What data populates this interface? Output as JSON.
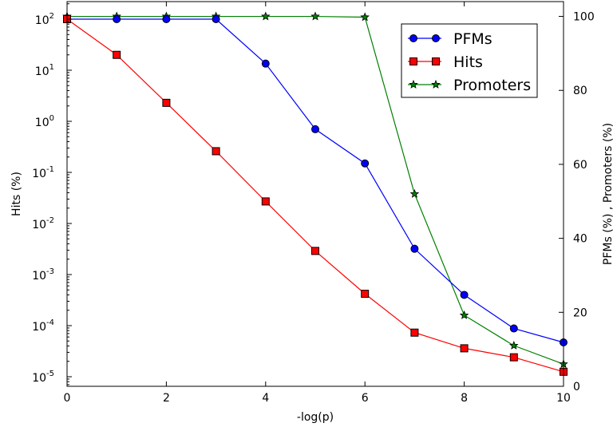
{
  "chart_data": {
    "type": "line",
    "xlabel": "-log(p)",
    "ylabel_left": "Hits (%)",
    "ylabel_right": "PFMs (%) , Promoters (%)",
    "x_ticks": [
      "0",
      "2",
      "4",
      "6",
      "8",
      "10"
    ],
    "xlim": [
      0,
      10
    ],
    "y_left_scale": "log",
    "y_left_ticks": [
      {
        "base": "10",
        "exp": "2"
      },
      {
        "base": "10",
        "exp": "1"
      },
      {
        "base": "10",
        "exp": "0"
      },
      {
        "base": "10",
        "exp": "-1"
      },
      {
        "base": "10",
        "exp": "-2"
      },
      {
        "base": "10",
        "exp": "-3"
      },
      {
        "base": "10",
        "exp": "-4"
      },
      {
        "base": "10",
        "exp": "-5"
      }
    ],
    "y_right_ticks": [
      "0",
      "20",
      "40",
      "60",
      "80",
      "100"
    ],
    "y_right_lim": [
      0,
      104
    ],
    "grid": false,
    "legend_position": "top-right",
    "series": [
      {
        "name": "PFMs",
        "axis": "left",
        "color": "#0000ff",
        "marker": "circle",
        "x": [
          0,
          1,
          2,
          3,
          4,
          5,
          6,
          7,
          8,
          9,
          10
        ],
        "y": [
          100,
          100,
          100,
          100,
          13.5,
          0.7,
          0.15,
          0.0032,
          0.0004,
          8.8e-05,
          4.7e-05
        ]
      },
      {
        "name": "Hits",
        "axis": "left",
        "color": "#ff0000",
        "marker": "square",
        "x": [
          0,
          1,
          2,
          3,
          4,
          5,
          6,
          7,
          8,
          9,
          10
        ],
        "y": [
          100,
          20,
          2.3,
          0.26,
          0.027,
          0.0029,
          0.00042,
          7.3e-05,
          3.6e-05,
          2.4e-05,
          1.25e-05
        ]
      },
      {
        "name": "Promoters",
        "axis": "right",
        "color": "#008000",
        "marker": "star",
        "x": [
          0,
          1,
          2,
          3,
          4,
          5,
          6,
          7,
          8,
          9,
          10
        ],
        "y": [
          100,
          100,
          100,
          100,
          100,
          100,
          99.8,
          52,
          19.2,
          11,
          6
        ]
      }
    ]
  }
}
